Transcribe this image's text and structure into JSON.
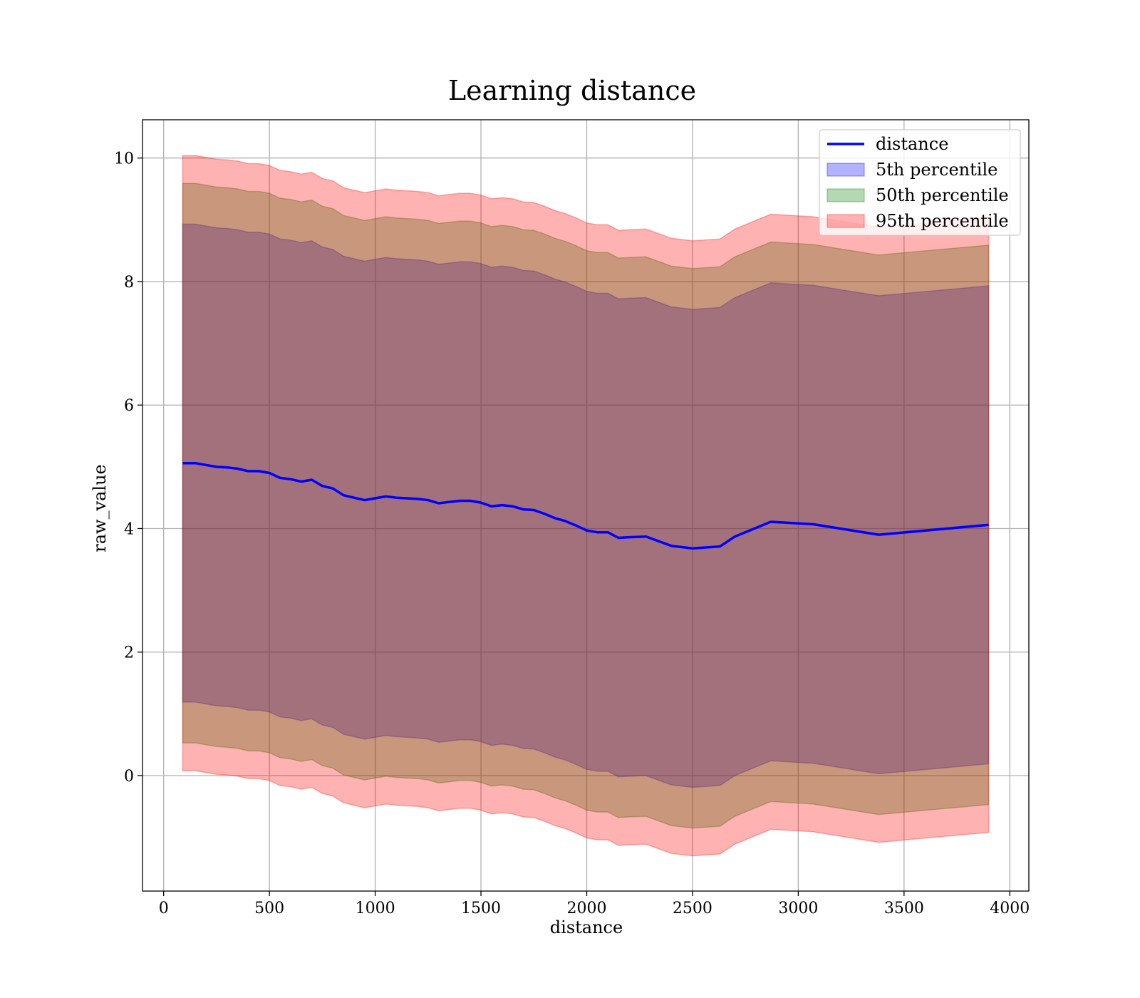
{
  "chart_data": {
    "type": "area",
    "title": "Learning distance",
    "xlabel": "distance",
    "ylabel": "raw_value",
    "xlim": [
      -100,
      4090
    ],
    "ylim": [
      -1.87,
      10.62
    ],
    "xticks": [
      0,
      500,
      1000,
      1500,
      2000,
      2500,
      3000,
      3500,
      4000
    ],
    "yticks": [
      0,
      2,
      4,
      6,
      8,
      10
    ],
    "grid": true,
    "legend_position": "top-right",
    "x": [
      90,
      150,
      200,
      250,
      300,
      350,
      400,
      450,
      500,
      550,
      600,
      650,
      700,
      750,
      800,
      850,
      900,
      950,
      1000,
      1050,
      1100,
      1150,
      1200,
      1250,
      1300,
      1350,
      1400,
      1450,
      1500,
      1550,
      1600,
      1650,
      1700,
      1750,
      1800,
      1850,
      1900,
      1950,
      2000,
      2050,
      2100,
      2150,
      2200,
      2280,
      2400,
      2500,
      2630,
      2700,
      2870,
      3070,
      3380,
      3900
    ],
    "series": [
      {
        "name": "distance",
        "kind": "line",
        "color": "#0000ff",
        "values": [
          5.06,
          5.06,
          5.03,
          5.0,
          4.99,
          4.97,
          4.93,
          4.93,
          4.9,
          4.82,
          4.8,
          4.76,
          4.79,
          4.69,
          4.65,
          4.54,
          4.5,
          4.46,
          4.49,
          4.52,
          4.5,
          4.49,
          4.48,
          4.46,
          4.41,
          4.43,
          4.45,
          4.45,
          4.42,
          4.36,
          4.38,
          4.36,
          4.31,
          4.3,
          4.24,
          4.17,
          4.12,
          4.05,
          3.97,
          3.94,
          3.94,
          3.85,
          3.86,
          3.87,
          3.72,
          3.68,
          3.71,
          3.87,
          4.11,
          4.07,
          3.9,
          4.06
        ]
      },
      {
        "name": "5th percentile",
        "kind": "band",
        "color": "#0000ff",
        "opacity": 0.3,
        "lower_offset": -3.87,
        "upper_offset": 3.87
      },
      {
        "name": "50th percentile",
        "kind": "band",
        "color": "#008000",
        "opacity": 0.3,
        "lower_offset": -4.53,
        "upper_offset": 4.53
      },
      {
        "name": "95th percentile",
        "kind": "band",
        "color": "#ff0000",
        "opacity": 0.3,
        "lower_offset": -4.98,
        "upper_offset": 4.98
      }
    ]
  }
}
